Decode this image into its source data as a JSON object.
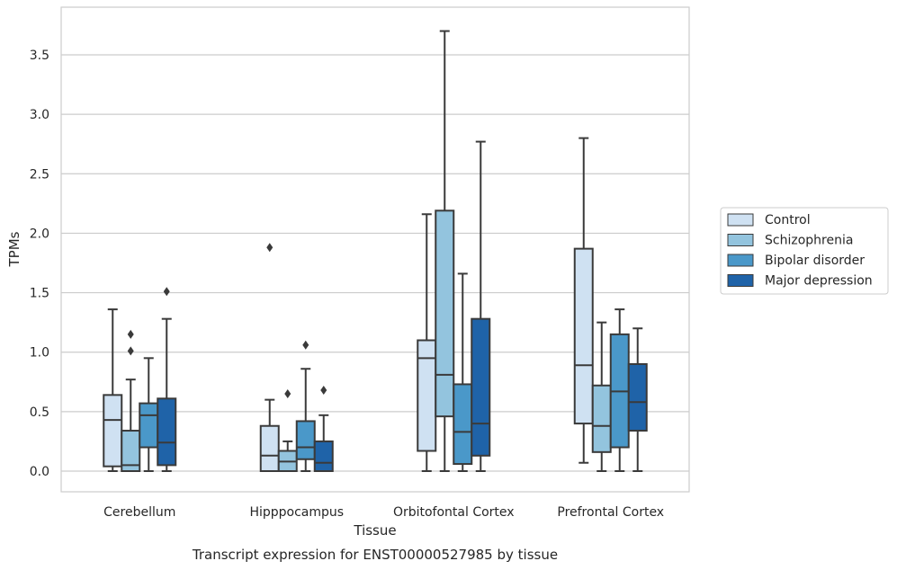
{
  "chart_data": {
    "type": "boxplot",
    "title": "Transcript expression for ENST00000527985 by tissue",
    "xlabel": "Tissue",
    "ylabel": "TPMs",
    "ylim": [
      -0.18,
      3.88
    ],
    "yticks": [
      0.0,
      0.5,
      1.0,
      1.5,
      2.0,
      2.5,
      3.0,
      3.5
    ],
    "ytick_labels": [
      "0.0",
      "0.5",
      "1.0",
      "1.5",
      "2.0",
      "2.5",
      "3.0",
      "3.5"
    ],
    "categories": [
      "Cerebellum",
      "Hipppocampus",
      "Orbitofontal Cortex",
      "Prefrontal Cortex"
    ],
    "grid": "horizontal",
    "legend_position": "right",
    "series": [
      {
        "name": "Control",
        "color": "#cfe1f2",
        "boxes": [
          {
            "whislo": 0.0,
            "q1": 0.04,
            "med": 0.43,
            "q3": 0.64,
            "whishi": 1.36,
            "fliers": []
          },
          {
            "whislo": 0.0,
            "q1": 0.0,
            "med": 0.13,
            "q3": 0.38,
            "whishi": 0.6,
            "fliers": [
              1.88
            ]
          },
          {
            "whislo": 0.0,
            "q1": 0.17,
            "med": 0.95,
            "q3": 1.1,
            "whishi": 2.16,
            "fliers": []
          },
          {
            "whislo": 0.07,
            "q1": 0.4,
            "med": 0.89,
            "q3": 1.87,
            "whishi": 2.8,
            "fliers": []
          }
        ]
      },
      {
        "name": "Schizophrenia",
        "color": "#93c4de",
        "boxes": [
          {
            "whislo": 0.0,
            "q1": 0.0,
            "med": 0.05,
            "q3": 0.34,
            "whishi": 0.77,
            "fliers": [
              1.01,
              1.15
            ]
          },
          {
            "whislo": 0.0,
            "q1": 0.0,
            "med": 0.08,
            "q3": 0.17,
            "whishi": 0.25,
            "fliers": [
              0.65
            ]
          },
          {
            "whislo": 0.0,
            "q1": 0.46,
            "med": 0.81,
            "q3": 2.19,
            "whishi": 3.7,
            "fliers": []
          },
          {
            "whislo": 0.0,
            "q1": 0.16,
            "med": 0.38,
            "q3": 0.72,
            "whishi": 1.25,
            "fliers": []
          }
        ]
      },
      {
        "name": "Bipolar disorder",
        "color": "#4a98c9",
        "boxes": [
          {
            "whislo": 0.0,
            "q1": 0.2,
            "med": 0.47,
            "q3": 0.57,
            "whishi": 0.95,
            "fliers": []
          },
          {
            "whislo": 0.0,
            "q1": 0.1,
            "med": 0.2,
            "q3": 0.42,
            "whishi": 0.86,
            "fliers": [
              1.06
            ]
          },
          {
            "whislo": 0.0,
            "q1": 0.06,
            "med": 0.33,
            "q3": 0.73,
            "whishi": 1.66,
            "fliers": []
          },
          {
            "whislo": 0.0,
            "q1": 0.2,
            "med": 0.67,
            "q3": 1.15,
            "whishi": 1.36,
            "fliers": []
          }
        ]
      },
      {
        "name": "Major depression",
        "color": "#1f63a8",
        "boxes": [
          {
            "whislo": 0.0,
            "q1": 0.05,
            "med": 0.24,
            "q3": 0.61,
            "whishi": 1.28,
            "fliers": [
              1.51
            ]
          },
          {
            "whislo": 0.0,
            "q1": 0.0,
            "med": 0.07,
            "q3": 0.25,
            "whishi": 0.47,
            "fliers": [
              0.68
            ]
          },
          {
            "whislo": 0.0,
            "q1": 0.13,
            "med": 0.4,
            "q3": 1.28,
            "whishi": 2.77,
            "fliers": []
          },
          {
            "whislo": 0.0,
            "q1": 0.34,
            "med": 0.58,
            "q3": 0.9,
            "whishi": 1.2,
            "fliers": []
          }
        ]
      }
    ]
  }
}
